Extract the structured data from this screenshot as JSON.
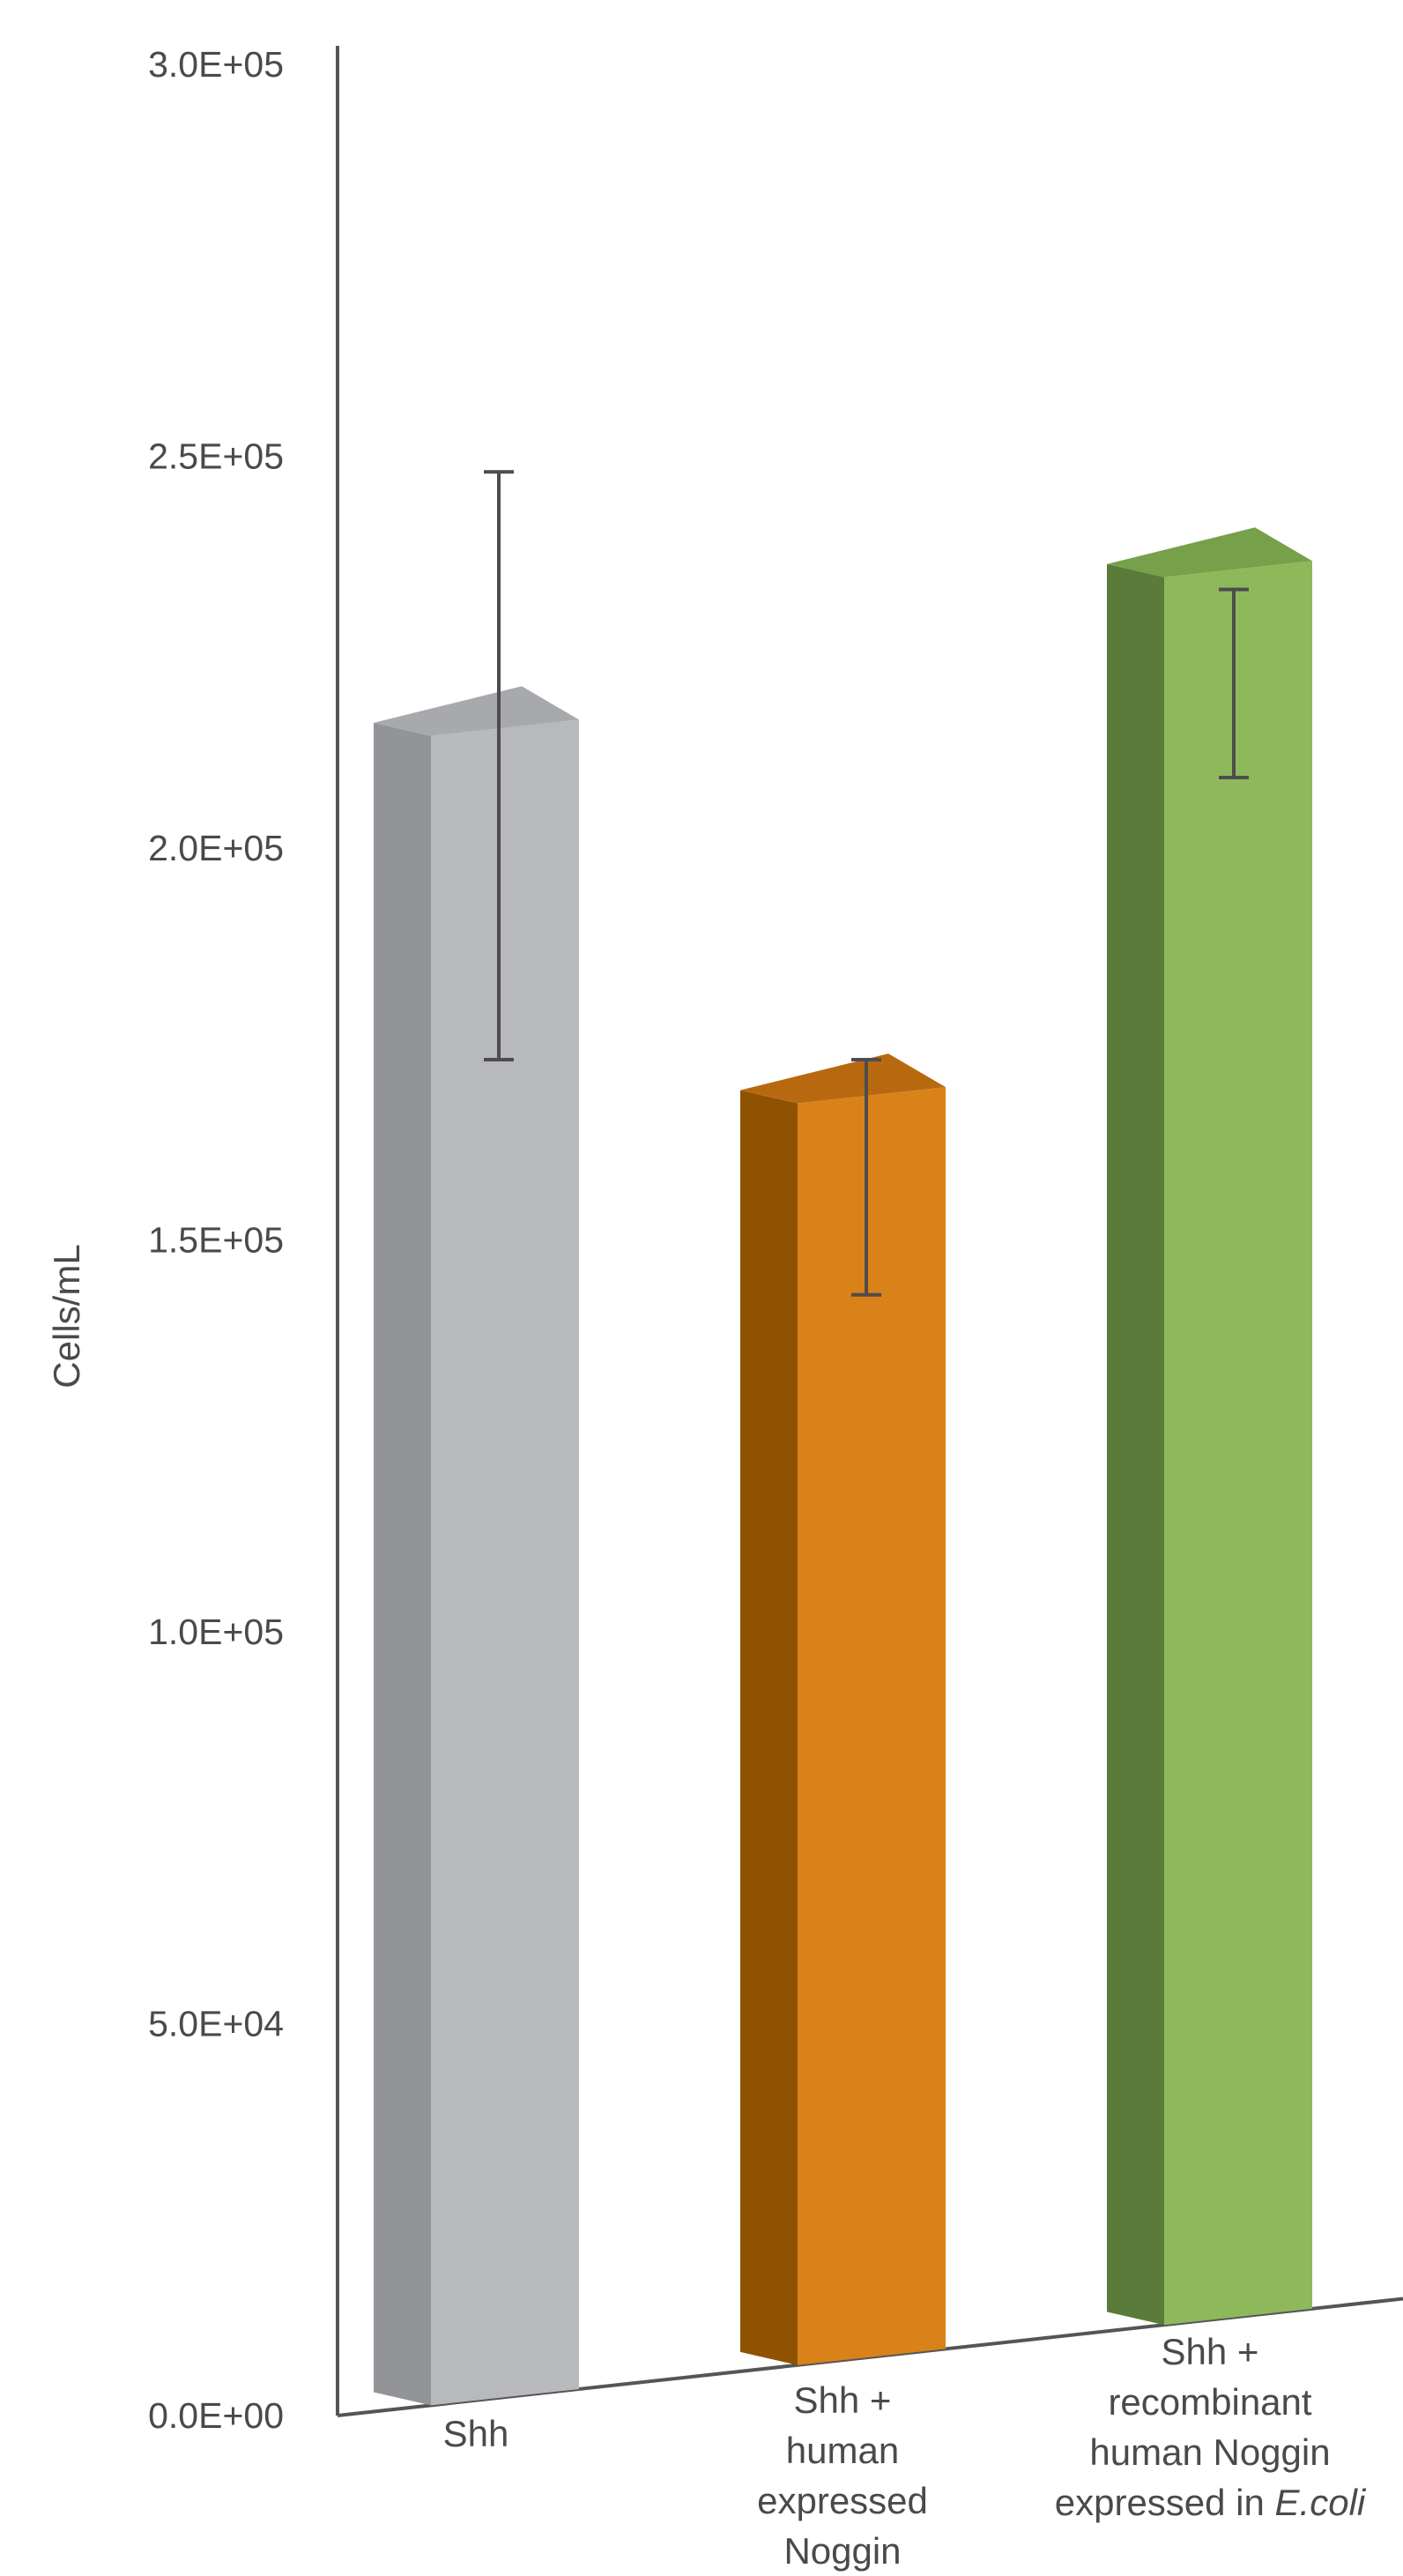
{
  "chart_data": {
    "type": "bar",
    "style": "3d",
    "ylabel": "Cells/mL",
    "xlabel": "",
    "ylim": [
      0,
      300000
    ],
    "yticks": [
      {
        "value": 0,
        "label": "0.0E+00"
      },
      {
        "value": 50000,
        "label": "5.0E+04"
      },
      {
        "value": 100000,
        "label": "1.0E+05"
      },
      {
        "value": 150000,
        "label": "1.5E+05"
      },
      {
        "value": 200000,
        "label": "2.0E+05"
      },
      {
        "value": 250000,
        "label": "2.5E+05"
      },
      {
        "value": 300000,
        "label": "3.0E+05"
      }
    ],
    "categories": [
      {
        "lines": [
          "Shh"
        ],
        "italic_suffix": ""
      },
      {
        "lines": [
          "Shh +",
          "human",
          "expressed",
          "Noggin"
        ],
        "italic_suffix": ""
      },
      {
        "lines": [
          "Shh +",
          "recombinant",
          "human Noggin",
          "expressed in "
        ],
        "italic_suffix": "E.coli"
      }
    ],
    "values": [
      213000,
      161000,
      223000
    ],
    "error_low": [
      173000,
      143000,
      209000
    ],
    "error_high": [
      248000,
      173000,
      233000
    ],
    "colors": {
      "bars": [
        {
          "front": "#b8b9bd",
          "side": "#939498",
          "top": "#a8a9ad"
        },
        {
          "front": "#d98219",
          "side": "#8e5200",
          "top": "#b8690f"
        },
        {
          "front": "#8eb95b",
          "side": "#5a7b3a",
          "top": "#76a04a"
        }
      ],
      "axis": "#555555",
      "error": "#4d4d4d",
      "text": "#4a4a4a"
    }
  }
}
